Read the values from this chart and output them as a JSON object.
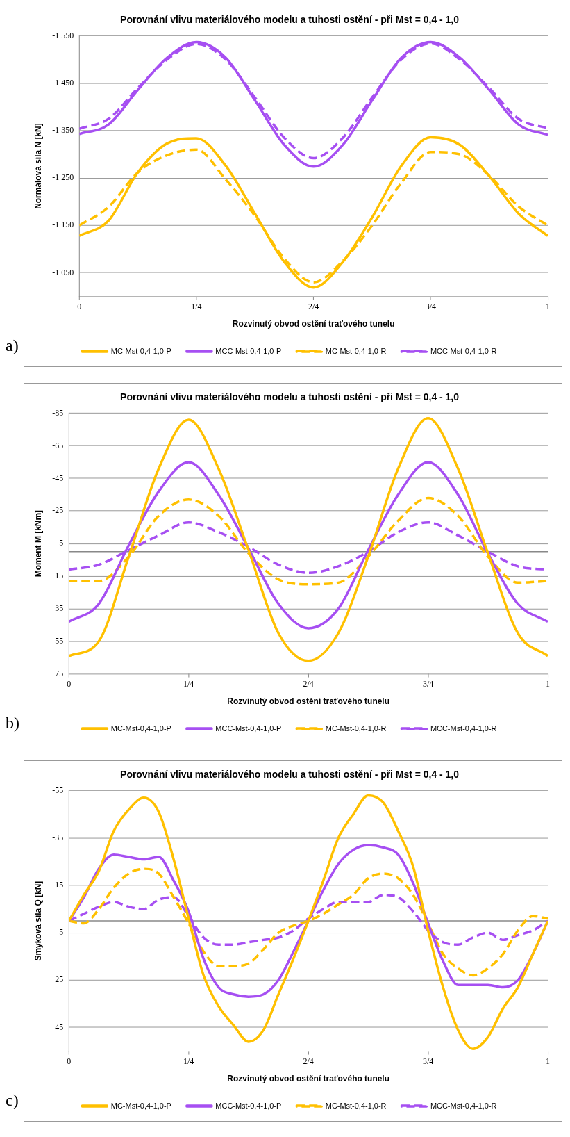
{
  "chart_data": [
    {
      "type": "line",
      "title": "Porovnání vlivu materiálového modelu a tuhosti ostění - při Mst = 0,4 - 1,0",
      "xlabel": "Rozvinutý obvod ostění traťového tunelu",
      "ylabel": "Normálová síla N [kN]",
      "annotations": [
        "a)"
      ],
      "x": [
        0,
        0.0625,
        0.125,
        0.1875,
        0.25,
        0.3125,
        0.375,
        0.4375,
        0.5,
        0.5625,
        0.625,
        0.6875,
        0.75,
        0.8125,
        0.875,
        0.9375,
        1
      ],
      "xlim": [
        0,
        1
      ],
      "xticks": [
        {
          "value": 0,
          "label": "0"
        },
        {
          "value": 0.25,
          "label": "1/4"
        },
        {
          "value": 0.5,
          "label": "2/4"
        },
        {
          "value": 0.75,
          "label": "3/4"
        },
        {
          "value": 1,
          "label": "1"
        }
      ],
      "ylim": [
        -1000,
        -1550
      ],
      "yticks": [
        {
          "value": -1550,
          "label": "-1 550"
        },
        {
          "value": -1450,
          "label": "-1 450"
        },
        {
          "value": -1350,
          "label": "-1 350"
        },
        {
          "value": -1250,
          "label": "-1 250"
        },
        {
          "value": -1150,
          "label": "-1 150"
        },
        {
          "value": -1050,
          "label": "-1 050"
        }
      ],
      "grid": "y",
      "legend": "bottom",
      "marker": "none",
      "series": [
        {
          "name": "MC-Mst-0,4-1,0-P",
          "color": "#ffc000",
          "line_style": "solid",
          "values": [
            -1128,
            -1160,
            -1262,
            -1323,
            -1334,
            -1276,
            -1175,
            -1073,
            -1019,
            -1073,
            -1167,
            -1276,
            -1336,
            -1320,
            -1254,
            -1175,
            -1128
          ]
        },
        {
          "name": "MCC-Mst-0,4-1,0-P",
          "color": "#a64ff2",
          "line_style": "solid",
          "values": [
            -1343,
            -1363,
            -1436,
            -1504,
            -1537,
            -1504,
            -1414,
            -1320,
            -1274,
            -1320,
            -1414,
            -1504,
            -1537,
            -1504,
            -1436,
            -1363,
            -1341
          ]
        },
        {
          "name": "MC-Mst-0,4-1,0-R",
          "color": "#ffc000",
          "line_style": "dashed",
          "values": [
            -1150,
            -1189,
            -1262,
            -1298,
            -1310,
            -1247,
            -1170,
            -1080,
            -1030,
            -1075,
            -1150,
            -1240,
            -1305,
            -1300,
            -1255,
            -1190,
            -1150
          ]
        },
        {
          "name": "MCC-Mst-0,4-1,0-R",
          "color": "#a64ff2",
          "line_style": "dashed",
          "values": [
            -1354,
            -1375,
            -1440,
            -1500,
            -1533,
            -1500,
            -1420,
            -1335,
            -1292,
            -1335,
            -1420,
            -1500,
            -1534,
            -1500,
            -1440,
            -1375,
            -1355
          ]
        }
      ]
    },
    {
      "type": "line",
      "title": "Porovnání vlivu materiálového modelu a tuhosti ostění - při Mst = 0,4 - 1,0",
      "xlabel": "Rozvinutý obvod ostění traťového tunelu",
      "ylabel": "Moment M [kNm]",
      "annotations": [
        "b)"
      ],
      "x": [
        0,
        0.0625,
        0.125,
        0.1875,
        0.25,
        0.3125,
        0.375,
        0.4375,
        0.5,
        0.5625,
        0.625,
        0.6875,
        0.75,
        0.8125,
        0.875,
        0.9375,
        1
      ],
      "xlim": [
        0,
        1
      ],
      "xticks": [
        {
          "value": 0,
          "label": "0"
        },
        {
          "value": 0.25,
          "label": "1/4"
        },
        {
          "value": 0.5,
          "label": "2/4"
        },
        {
          "value": 0.75,
          "label": "3/4"
        },
        {
          "value": 1,
          "label": "1"
        }
      ],
      "ylim": [
        75,
        -85
      ],
      "yticks": [
        -85,
        -65,
        -45,
        -25,
        -5,
        15,
        35,
        55,
        75
      ],
      "grid": "y",
      "legend": "bottom",
      "marker": "none",
      "series": [
        {
          "name": "MC-Mst-0,4-1,0-P",
          "color": "#ffc000",
          "line_style": "solid",
          "values": [
            64,
            55,
            3,
            -51,
            -81,
            -51,
            -1,
            50,
            67,
            50,
            3,
            -51,
            -82,
            -51,
            1,
            50,
            64
          ]
        },
        {
          "name": "MCC-Mst-0,4-1,0-P",
          "color": "#a64ff2",
          "line_style": "solid",
          "values": [
            43,
            32,
            -4,
            -37,
            -55,
            -35,
            -2,
            32,
            47,
            35,
            -1,
            -35,
            -55,
            -35,
            1,
            32,
            43
          ]
        },
        {
          "name": "MC-Mst-0,4-1,0-R",
          "color": "#ffc000",
          "line_style": "dashed",
          "values": [
            18,
            18,
            3,
            -22,
            -32,
            -22,
            1,
            17,
            20,
            19,
            3,
            -19,
            -33,
            -22,
            3,
            19,
            18
          ]
        },
        {
          "name": "MCC-Mst-0,4-1,0-R",
          "color": "#a64ff2",
          "line_style": "dashed",
          "values": [
            11,
            8,
            -1,
            -10,
            -18,
            -12,
            -3,
            8,
            13,
            9,
            0,
            -12,
            -18,
            -10,
            0,
            9,
            11
          ]
        }
      ]
    },
    {
      "type": "line",
      "title": "Porovnání vlivu materiálového modelu a tuhosti ostění - při Mst = 0,4 - 1,0",
      "xlabel": "Rozvinutý obvod ostění traťového tunelu",
      "ylabel": "Smyková síla Q [kN]",
      "annotations": [
        "c)"
      ],
      "x": [
        0,
        0.03125,
        0.0625,
        0.09375,
        0.125,
        0.15625,
        0.1875,
        0.21875,
        0.25,
        0.28125,
        0.3125,
        0.34375,
        0.375,
        0.40625,
        0.4375,
        0.46875,
        0.5,
        0.53125,
        0.5625,
        0.59375,
        0.625,
        0.65625,
        0.6875,
        0.71875,
        0.75,
        0.78125,
        0.8125,
        0.84375,
        0.875,
        0.90625,
        0.9375,
        0.96875,
        1
      ],
      "xlim": [
        0,
        1
      ],
      "xticks": [
        {
          "value": 0,
          "label": "0"
        },
        {
          "value": 0.25,
          "label": "1/4"
        },
        {
          "value": 0.5,
          "label": "2/4"
        },
        {
          "value": 0.75,
          "label": "3/4"
        },
        {
          "value": 1,
          "label": "1"
        }
      ],
      "ylim": [
        55,
        -55
      ],
      "yticks": [
        -55,
        -35,
        -15,
        5,
        25,
        45
      ],
      "grid": "y",
      "legend": "bottom",
      "marker": "none",
      "series": [
        {
          "name": "MC-Mst-0,4-1,0-P",
          "color": "#ffc000",
          "line_style": "solid",
          "values": [
            0,
            -11,
            -21,
            -38,
            -47,
            -52,
            -46,
            -26,
            -1,
            23,
            36,
            44,
            51,
            46,
            31,
            16,
            0,
            -17,
            -35,
            -45,
            -53,
            -50,
            -38,
            -23,
            4,
            28,
            46,
            54,
            49,
            37,
            28,
            14,
            0
          ]
        },
        {
          "name": "MCC-Mst-0,4-1,0-P",
          "color": "#a64ff2",
          "line_style": "solid",
          "values": [
            0,
            -10,
            -22,
            -28,
            -27,
            -26,
            -27,
            -17,
            -4,
            16,
            28,
            31,
            32,
            31,
            25,
            13,
            0,
            -13,
            -24,
            -30,
            -32,
            -31,
            -28,
            -16,
            1,
            17,
            27,
            27,
            27,
            28,
            25,
            14,
            0
          ]
        },
        {
          "name": "MC-Mst-0,4-1,0-R",
          "color": "#ffc000",
          "line_style": "dashed",
          "values": [
            0,
            1,
            -5,
            -14,
            -20,
            -22,
            -20,
            -10,
            1,
            13,
            19,
            19,
            18,
            12,
            5,
            2,
            0,
            -3,
            -7,
            -11,
            -18,
            -20,
            -18,
            -11,
            1,
            14,
            20,
            23,
            20,
            14,
            4,
            -2,
            -1
          ]
        },
        {
          "name": "MCC-Mst-0,4-1,0-R",
          "color": "#a64ff2",
          "line_style": "dashed",
          "values": [
            0,
            -3,
            -6,
            -8,
            -6,
            -5,
            -9,
            -10,
            -2,
            7,
            10,
            10,
            9,
            8,
            7,
            4,
            -1,
            -5,
            -8,
            -8,
            -8,
            -11,
            -10,
            -4,
            4,
            9,
            10,
            7,
            5,
            8,
            6,
            4,
            0
          ]
        }
      ]
    }
  ]
}
